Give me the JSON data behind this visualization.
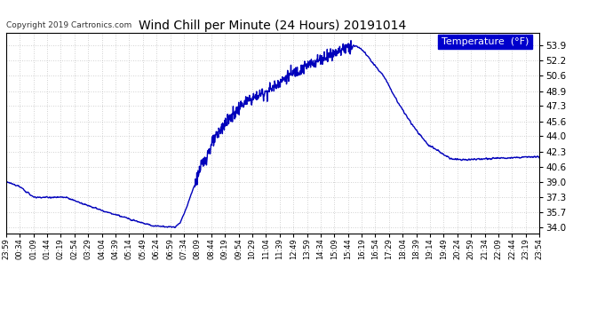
{
  "title": "Wind Chill per Minute (24 Hours) 20191014",
  "copyright_text": "Copyright 2019 Cartronics.com",
  "legend_label": "Temperature  (°F)",
  "line_color": "#0000bb",
  "background_color": "#ffffff",
  "plot_bg_color": "#ffffff",
  "legend_bg_color": "#0000cc",
  "legend_text_color": "#ffffff",
  "title_color": "#000000",
  "grid_color": "#bbbbbb",
  "ytick_labels": [
    "34.0",
    "35.7",
    "37.3",
    "39.0",
    "40.6",
    "42.3",
    "44.0",
    "45.6",
    "47.3",
    "48.9",
    "50.6",
    "52.2",
    "53.9"
  ],
  "ytick_values": [
    34.0,
    35.7,
    37.3,
    39.0,
    40.6,
    42.3,
    44.0,
    45.6,
    47.3,
    48.9,
    50.6,
    52.2,
    53.9
  ],
  "ylim": [
    33.4,
    55.2
  ],
  "x_labels": [
    "23:59",
    "00:34",
    "01:09",
    "01:44",
    "02:19",
    "02:54",
    "03:29",
    "04:04",
    "04:39",
    "05:14",
    "05:49",
    "06:24",
    "06:59",
    "07:34",
    "08:09",
    "08:44",
    "09:19",
    "09:54",
    "10:29",
    "11:04",
    "11:39",
    "12:49",
    "13:59",
    "14:34",
    "15:09",
    "15:44",
    "16:19",
    "16:54",
    "17:29",
    "18:04",
    "18:39",
    "19:14",
    "19:49",
    "20:24",
    "20:59",
    "21:34",
    "22:09",
    "22:44",
    "23:19",
    "23:54"
  ],
  "line_width": 1.0,
  "key_points_x": [
    0,
    35,
    75,
    110,
    160,
    215,
    270,
    330,
    395,
    455,
    470,
    490,
    520,
    555,
    580,
    610,
    640,
    670,
    710,
    760,
    820,
    870,
    920,
    940,
    960,
    990,
    1020,
    1060,
    1100,
    1140,
    1170,
    1200,
    1240,
    1290,
    1350,
    1410,
    1440
  ],
  "key_points_y": [
    39.0,
    38.5,
    37.3,
    37.3,
    37.3,
    36.5,
    35.7,
    35.0,
    34.2,
    34.05,
    34.5,
    36.5,
    40.0,
    43.0,
    44.8,
    46.2,
    47.5,
    48.2,
    49.0,
    50.5,
    51.8,
    52.8,
    53.7,
    53.9,
    53.5,
    52.0,
    50.5,
    47.5,
    45.0,
    43.0,
    42.3,
    41.5,
    41.4,
    41.5,
    41.6,
    41.7,
    41.7
  ]
}
